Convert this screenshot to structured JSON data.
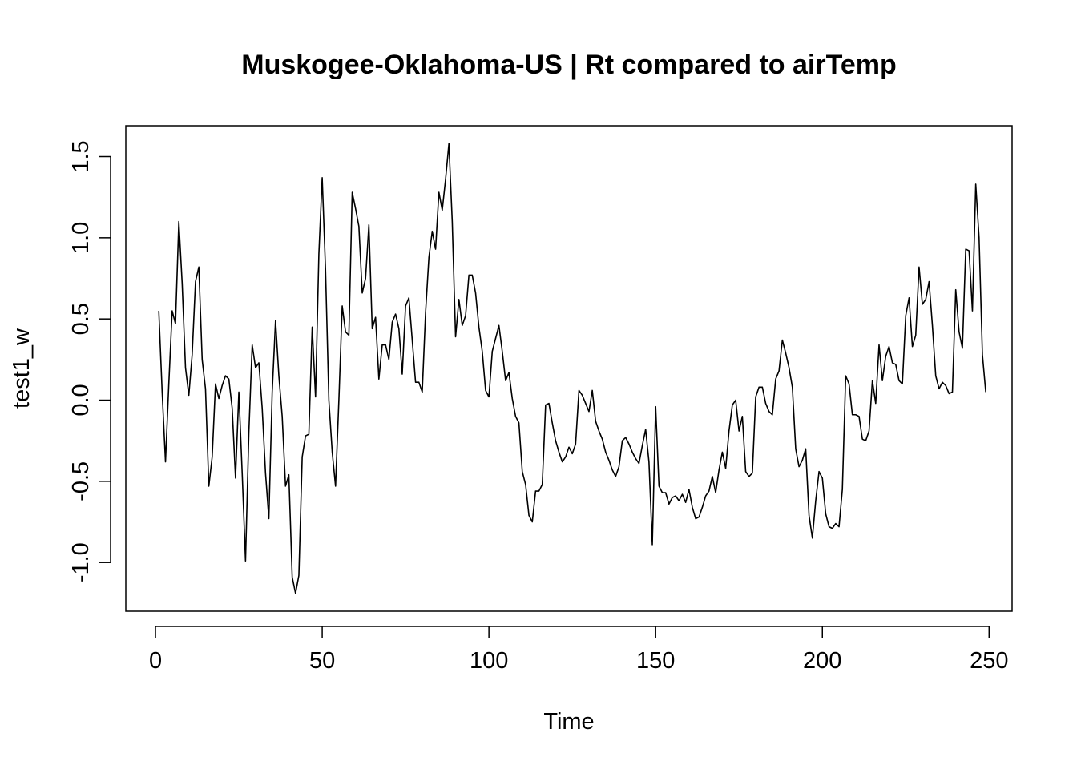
{
  "chart_data": {
    "type": "line",
    "title": "Muskogee-Oklahoma-US | Rt compared to airTemp",
    "xlabel": "Time",
    "ylabel": "test1_w",
    "xlim": [
      -8.9,
      256.9
    ],
    "ylim": [
      -1.3,
      1.69
    ],
    "x_ticks": [
      0,
      50,
      100,
      150,
      200,
      250
    ],
    "x_tick_labels": [
      "0",
      "50",
      "100",
      "150",
      "200",
      "250"
    ],
    "y_ticks": [
      -1.0,
      -0.5,
      0.0,
      0.5,
      1.0,
      1.5
    ],
    "y_tick_labels": [
      "-1.0",
      "-0.5",
      "0.0",
      "0.5",
      "1.0",
      "1.5"
    ],
    "grid": false,
    "legend": "none",
    "line_color": "#000000",
    "series": [
      {
        "x_start": 1,
        "values": [
          0.55,
          0.05,
          -0.38,
          0.1,
          0.55,
          0.47,
          1.1,
          0.72,
          0.2,
          0.03,
          0.28,
          0.73,
          0.82,
          0.25,
          0.07,
          -0.53,
          -0.35,
          0.1,
          0.01,
          0.09,
          0.15,
          0.13,
          -0.05,
          -0.48,
          0.05,
          -0.45,
          -0.99,
          -0.2,
          0.34,
          0.2,
          0.23,
          -0.05,
          -0.45,
          -0.73,
          0.05,
          0.49,
          0.15,
          -0.1,
          -0.53,
          -0.46,
          -1.09,
          -1.19,
          -1.08,
          -0.35,
          -0.22,
          -0.21,
          0.45,
          0.02,
          0.9,
          1.37,
          0.8,
          0.0,
          -0.32,
          -0.53,
          0.0,
          0.58,
          0.42,
          0.4,
          1.28,
          1.18,
          1.07,
          0.66,
          0.75,
          1.08,
          0.44,
          0.51,
          0.13,
          0.34,
          0.34,
          0.25,
          0.48,
          0.53,
          0.44,
          0.16,
          0.58,
          0.63,
          0.37,
          0.11,
          0.11,
          0.05,
          0.54,
          0.88,
          1.04,
          0.93,
          1.28,
          1.17,
          1.36,
          1.58,
          1.1,
          0.39,
          0.62,
          0.46,
          0.52,
          0.77,
          0.77,
          0.66,
          0.45,
          0.3,
          0.06,
          0.02,
          0.3,
          0.38,
          0.46,
          0.3,
          0.12,
          0.17,
          0.01,
          -0.1,
          -0.14,
          -0.44,
          -0.52,
          -0.71,
          -0.75,
          -0.56,
          -0.56,
          -0.52,
          -0.03,
          -0.02,
          -0.14,
          -0.25,
          -0.32,
          -0.38,
          -0.35,
          -0.29,
          -0.33,
          -0.27,
          0.06,
          0.03,
          -0.02,
          -0.07,
          0.06,
          -0.13,
          -0.19,
          -0.24,
          -0.32,
          -0.37,
          -0.43,
          -0.47,
          -0.41,
          -0.25,
          -0.23,
          -0.27,
          -0.32,
          -0.36,
          -0.39,
          -0.28,
          -0.18,
          -0.38,
          -0.89,
          -0.04,
          -0.53,
          -0.57,
          -0.57,
          -0.64,
          -0.6,
          -0.59,
          -0.62,
          -0.58,
          -0.63,
          -0.55,
          -0.66,
          -0.73,
          -0.72,
          -0.66,
          -0.59,
          -0.56,
          -0.47,
          -0.57,
          -0.43,
          -0.32,
          -0.42,
          -0.19,
          -0.03,
          0.0,
          -0.19,
          -0.1,
          -0.44,
          -0.47,
          -0.45,
          0.02,
          0.08,
          0.08,
          -0.02,
          -0.07,
          -0.09,
          0.13,
          0.18,
          0.37,
          0.29,
          0.2,
          0.08,
          -0.3,
          -0.41,
          -0.37,
          -0.3,
          -0.71,
          -0.85,
          -0.62,
          -0.44,
          -0.48,
          -0.7,
          -0.78,
          -0.79,
          -0.76,
          -0.78,
          -0.55,
          0.15,
          0.1,
          -0.09,
          -0.09,
          -0.1,
          -0.24,
          -0.25,
          -0.19,
          0.12,
          -0.02,
          0.34,
          0.12,
          0.27,
          0.33,
          0.23,
          0.22,
          0.12,
          0.1,
          0.52,
          0.63,
          0.33,
          0.4,
          0.82,
          0.59,
          0.62,
          0.73,
          0.46,
          0.15,
          0.07,
          0.11,
          0.09,
          0.04,
          0.05,
          0.68,
          0.42,
          0.32,
          0.93,
          0.92,
          0.55,
          1.33,
          1.0,
          0.28,
          0.05
        ]
      }
    ]
  }
}
